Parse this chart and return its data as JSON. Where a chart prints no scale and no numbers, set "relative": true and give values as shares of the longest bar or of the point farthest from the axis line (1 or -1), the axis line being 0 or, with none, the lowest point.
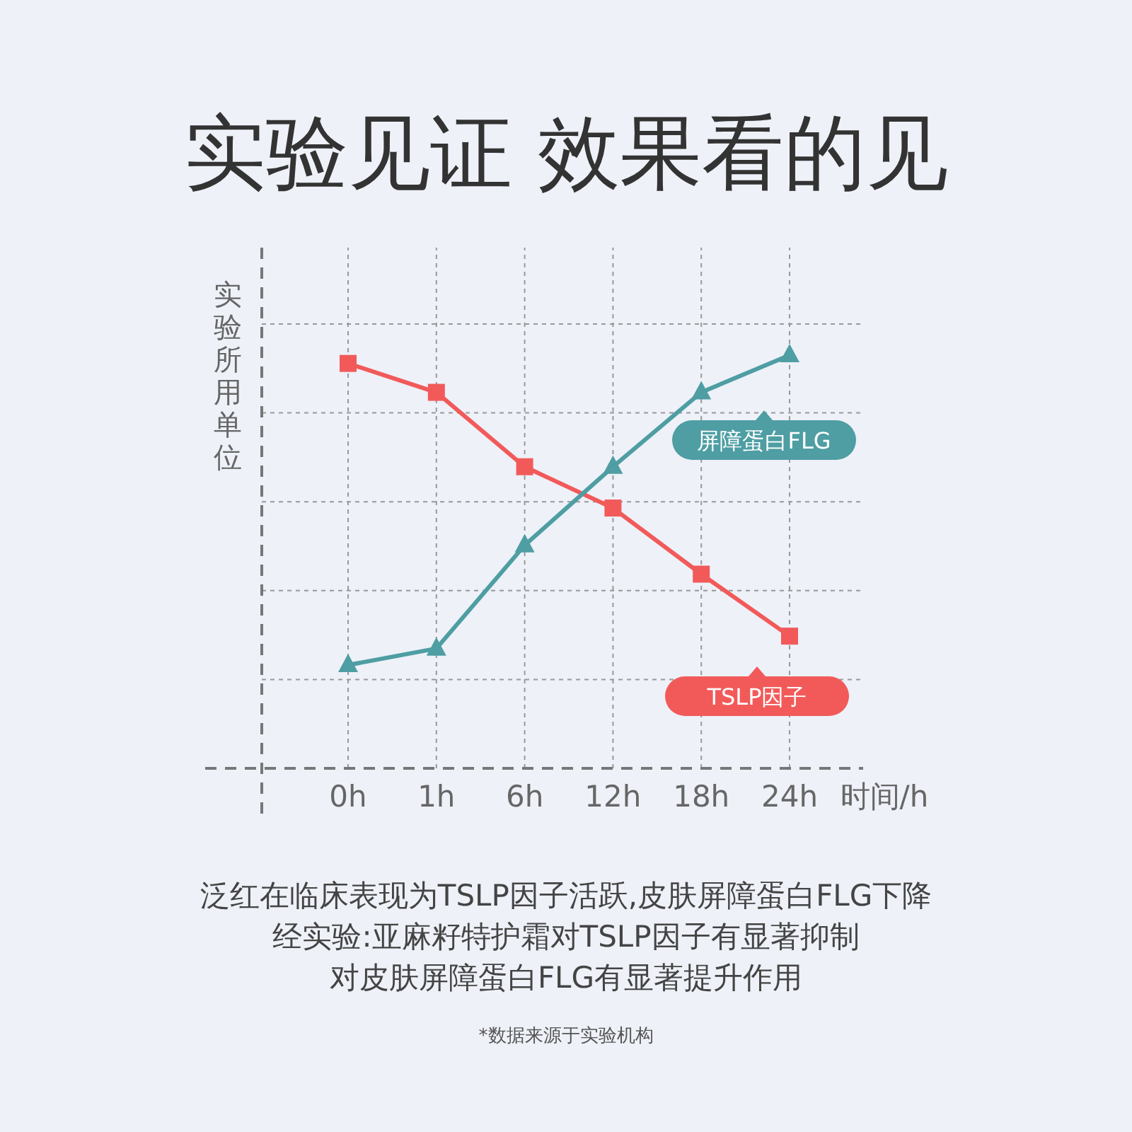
{
  "chart_data": {
    "type": "line",
    "title": "实验见证 效果看的见",
    "ylabel": "实验所用单位",
    "xlabel": "时间/h",
    "relative": true,
    "grid": true,
    "legend": "right",
    "categories": [
      "0h",
      "1h",
      "6h",
      "12h",
      "18h",
      "24h"
    ],
    "series": [
      {
        "name": "TSLP因子",
        "color": "#f25a5a",
        "marker": "square",
        "values": [
          0.98,
          0.91,
          0.73,
          0.63,
          0.47,
          0.32
        ]
      },
      {
        "name": "屏障蛋白FLG",
        "color": "#4e9ea3",
        "marker": "triangle",
        "values": [
          0.25,
          0.29,
          0.54,
          0.73,
          0.91,
          1
        ]
      }
    ],
    "annotations": [
      "泛红在临床表现为TSLP因子活跃,皮肤屏障蛋白FLG下降",
      "经实验:亚麻籽特护霜对TSLP因子有显著抑制",
      "对皮肤屏障蛋白FLG有显著提升作用",
      "*数据来源于实验机构"
    ]
  }
}
